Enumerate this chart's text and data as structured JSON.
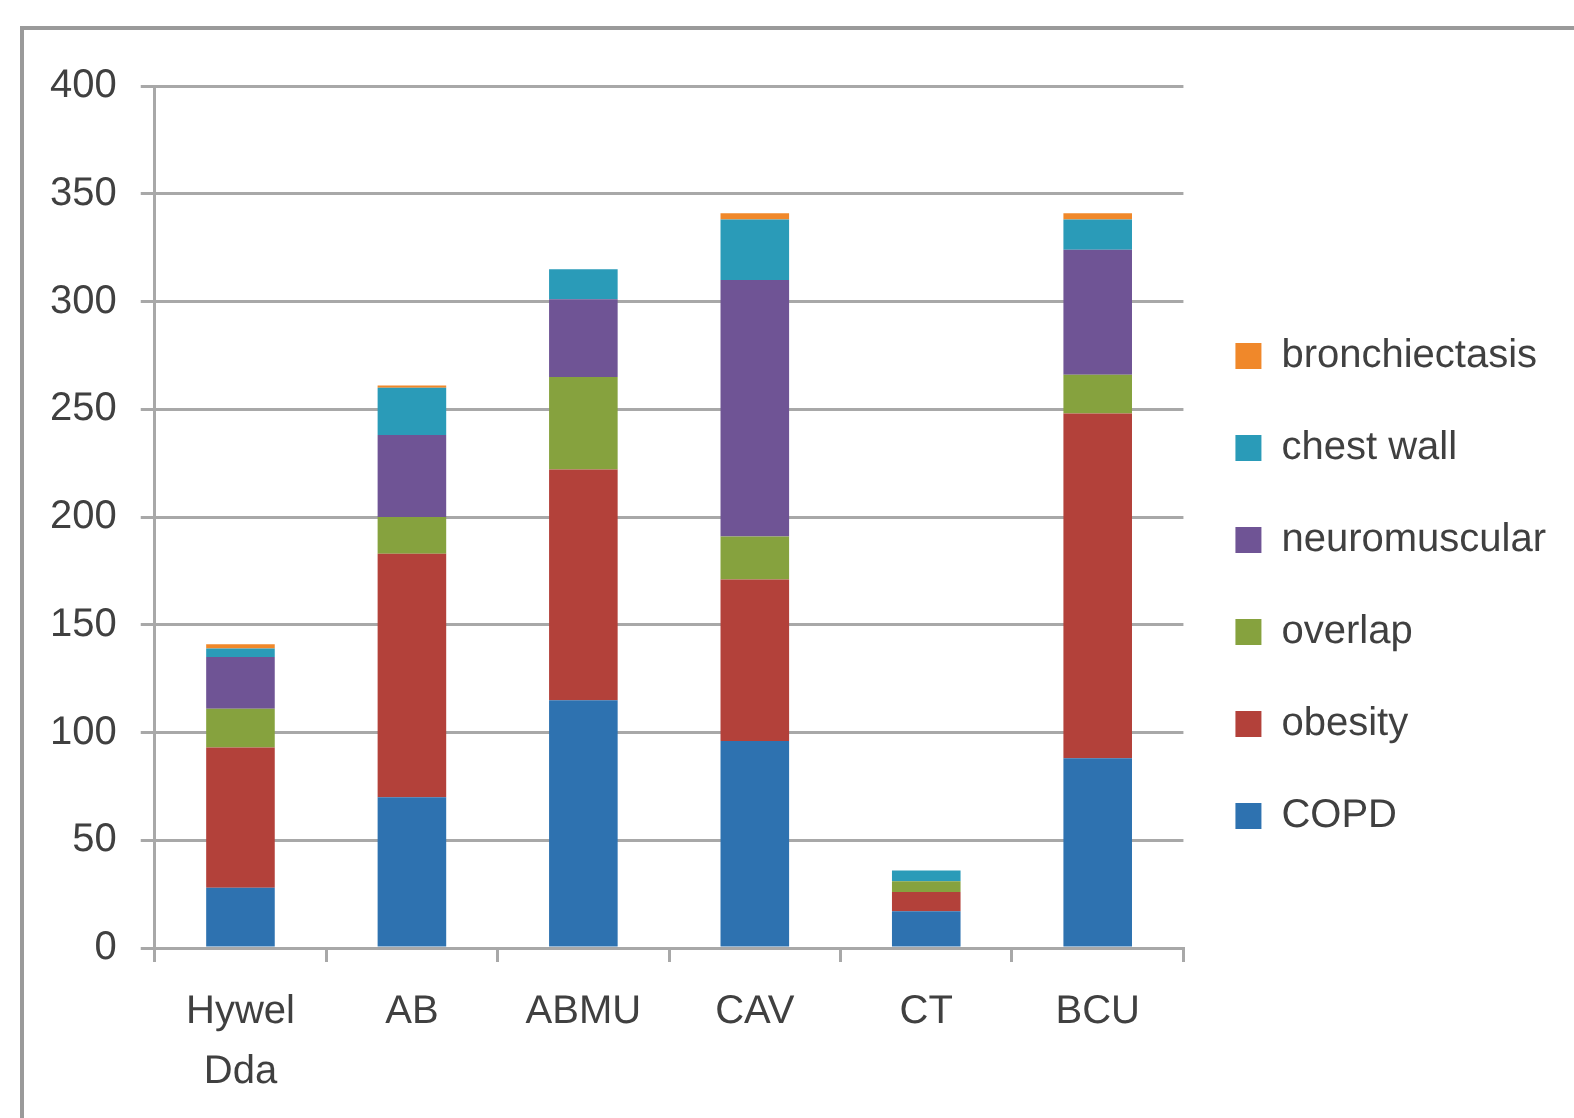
{
  "chart_data": {
    "type": "bar",
    "stacked": true,
    "categories": [
      "Hywel Dda",
      "AB",
      "ABMU",
      "CAV",
      "CT",
      "BCU"
    ],
    "series": [
      {
        "name": "COPD",
        "color": "#2e72b0",
        "values": [
          28,
          70,
          115,
          96,
          17,
          88
        ]
      },
      {
        "name": "obesity",
        "color": "#b3413a",
        "values": [
          65,
          113,
          107,
          75,
          9,
          160
        ]
      },
      {
        "name": "overlap",
        "color": "#86a23e",
        "values": [
          18,
          17,
          43,
          20,
          5,
          18
        ]
      },
      {
        "name": "neuromuscular",
        "color": "#6f5495",
        "values": [
          24,
          38,
          36,
          119,
          0,
          58
        ]
      },
      {
        "name": "chest wall",
        "color": "#2a9bb8",
        "values": [
          4,
          22,
          14,
          28,
          5,
          14
        ]
      },
      {
        "name": "bronchiectasis",
        "color": "#f0882a",
        "values": [
          2,
          1,
          0,
          3,
          0,
          3
        ]
      }
    ],
    "ylim": [
      0,
      400
    ],
    "yticks": [
      0,
      50,
      100,
      150,
      200,
      250,
      300,
      350,
      400
    ],
    "grid": "y",
    "legend": "right"
  }
}
